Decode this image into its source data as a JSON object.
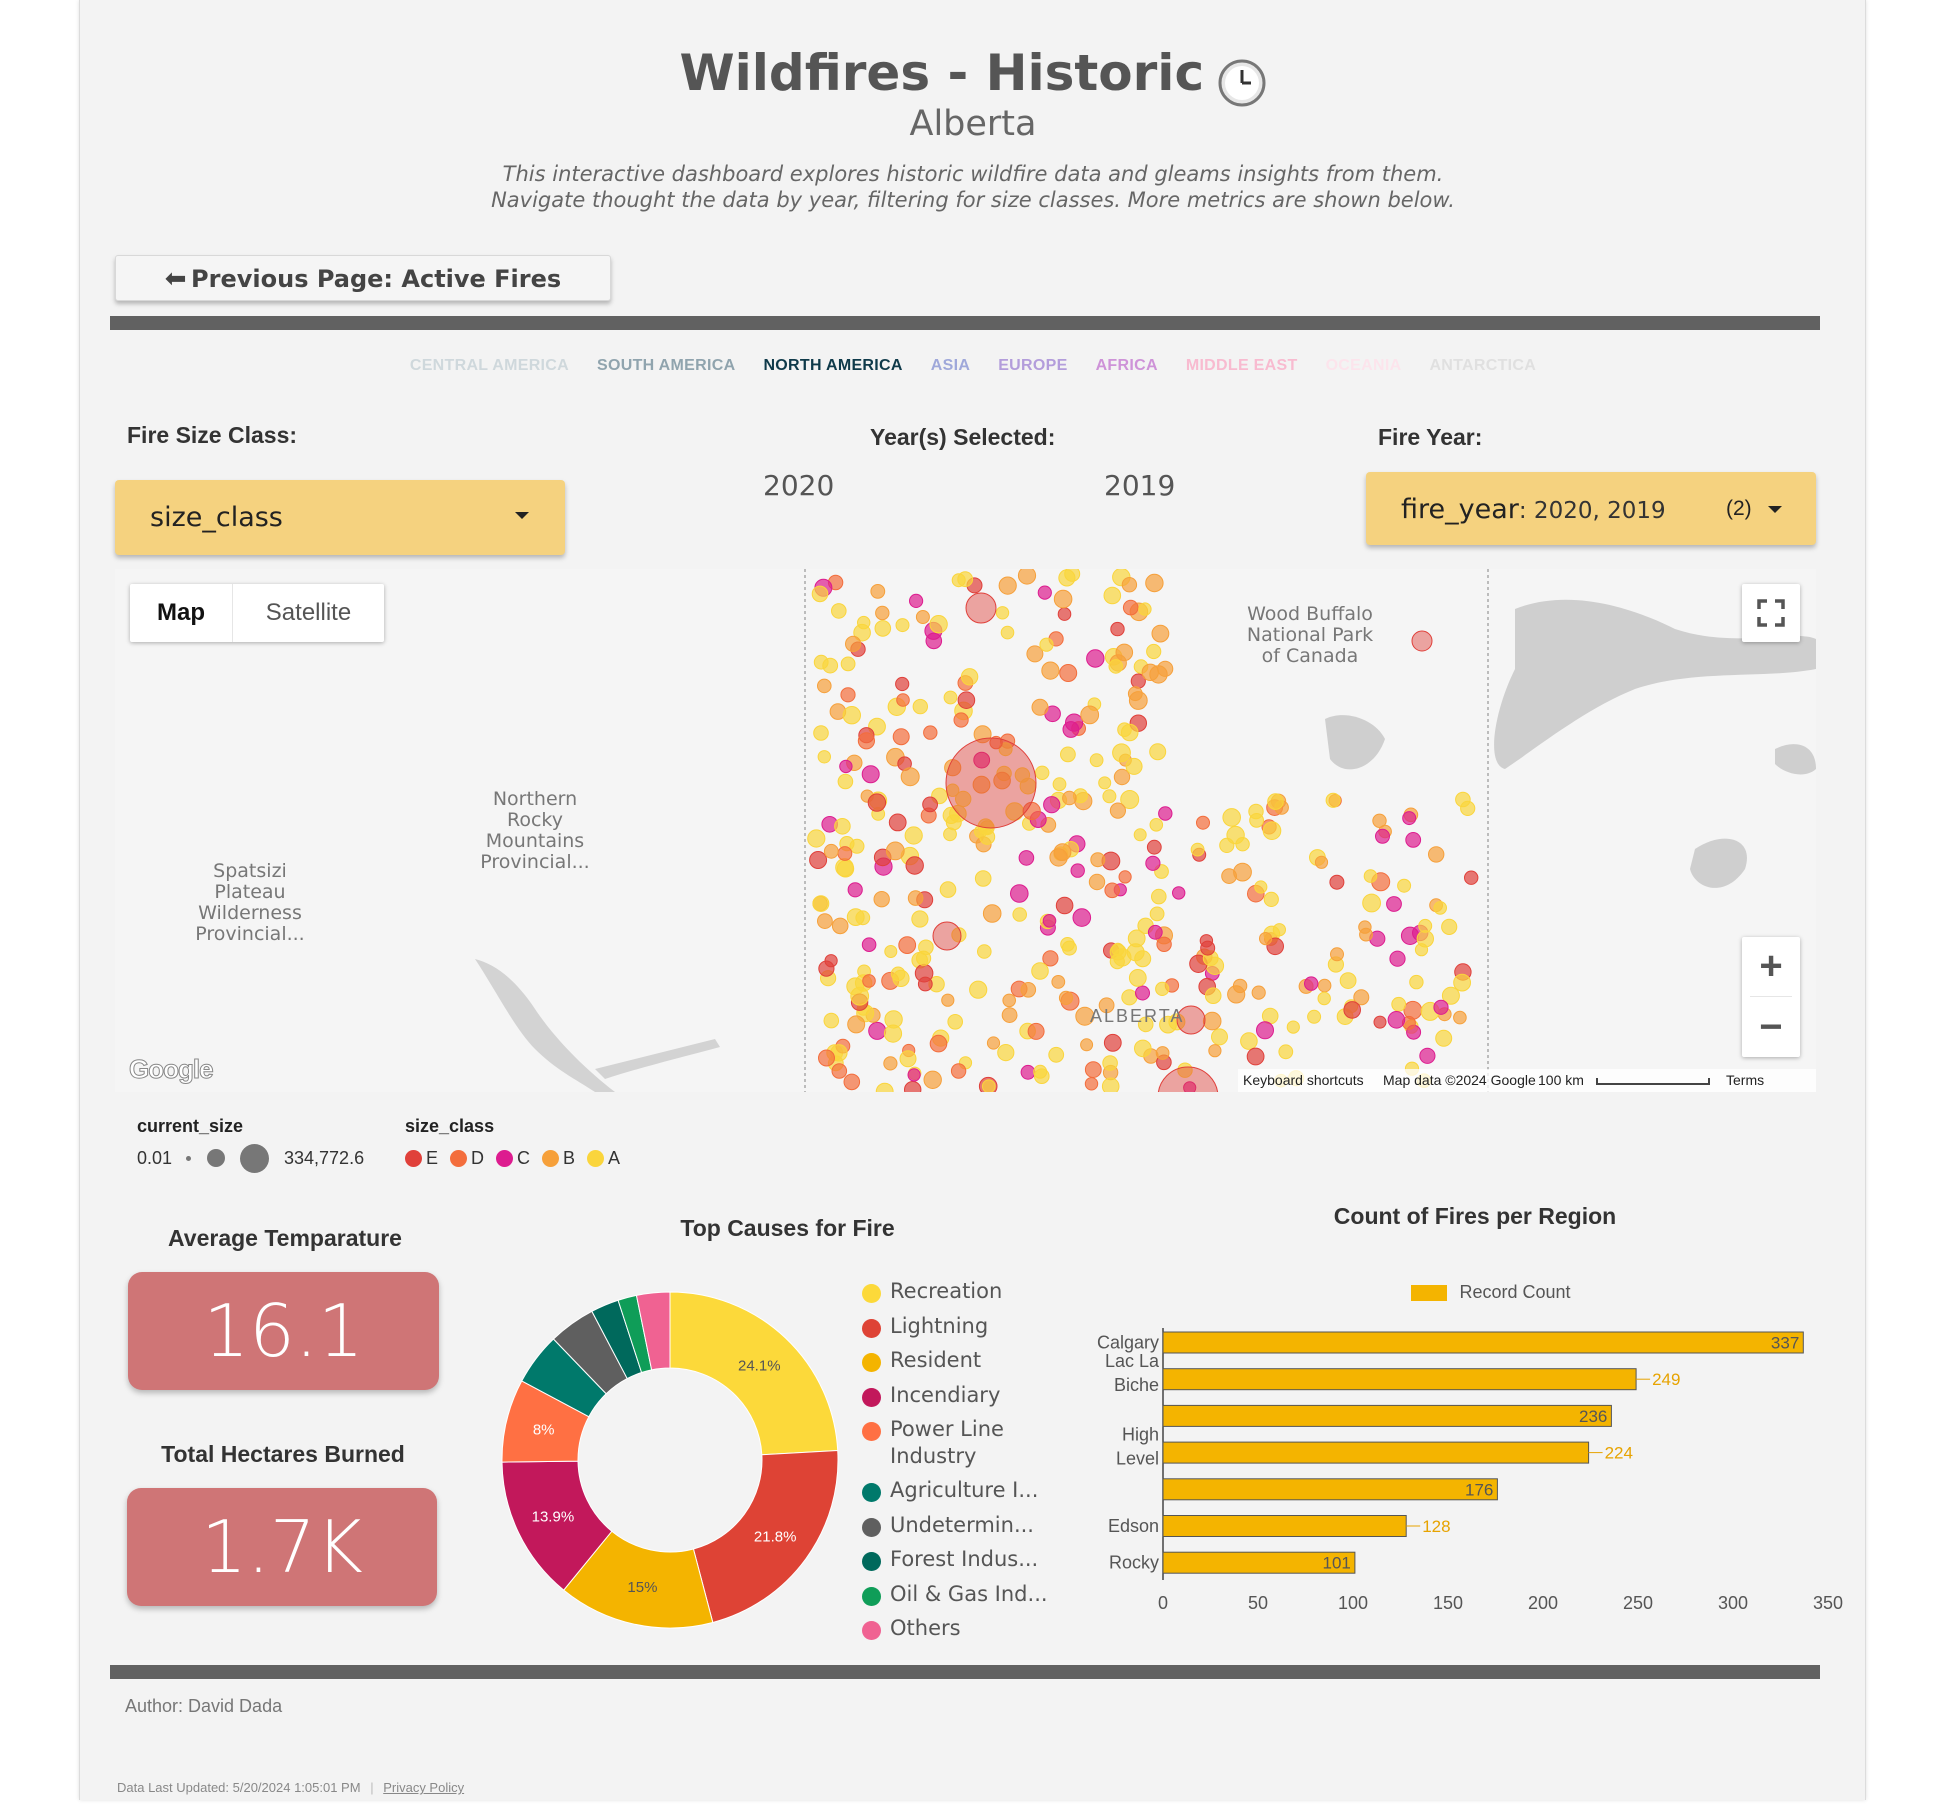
{
  "header": {
    "title": "Wildfires - Historic",
    "title_icon": "clock-icon",
    "subtitle": "Alberta",
    "description_line1": "This interactive dashboard explores historic wildfire data and gleams insights from them.",
    "description_line2": "Navigate thought the data by year, filtering for size classes. More metrics are shown below."
  },
  "nav": {
    "previous_page_label": "Previous Page: Active Fires"
  },
  "region_tabs": [
    {
      "label": "CENTRAL AMERICA",
      "color": "#cfd8dc"
    },
    {
      "label": "SOUTH AMERICA",
      "color": "#90a4ae"
    },
    {
      "label": "NORTH AMERICA",
      "color": "#0f3a4a"
    },
    {
      "label": "ASIA",
      "color": "#9fa8da"
    },
    {
      "label": "EUROPE",
      "color": "#b39ddb"
    },
    {
      "label": "AFRICA",
      "color": "#ce93d8"
    },
    {
      "label": "MIDDLE EAST",
      "color": "#f8bbd0"
    },
    {
      "label": "OCEANIA",
      "color": "#fce4ec"
    },
    {
      "label": "ANTARCTICA",
      "color": "#e0e0e0"
    }
  ],
  "filters": {
    "size_class_label": "Fire Size Class:",
    "size_class_value": "size_class",
    "years_selected_label": "Year(s) Selected:",
    "years_selected": [
      "2020",
      "2019"
    ],
    "fire_year_label": "Fire Year:",
    "fire_year_field": "fire_year",
    "fire_year_value": ": 2020, 2019",
    "fire_year_count": "(2)"
  },
  "map": {
    "map_button": "Map",
    "satellite_button": "Satellite",
    "labels": {
      "wood_buffalo_1": "Wood Buffalo",
      "wood_buffalo_2": "National Park",
      "wood_buffalo_3": "of Canada",
      "northern_rocky_1": "Northern",
      "northern_rocky_2": "Rocky",
      "northern_rocky_3": "Mountains",
      "northern_rocky_4": "Provincial...",
      "spatsizi_1": "Spatsizi",
      "spatsizi_2": "Plateau",
      "spatsizi_3": "Wilderness",
      "spatsizi_4": "Provincial...",
      "alberta": "ALBERTA"
    },
    "google_logo": "Google",
    "footer": {
      "shortcuts": "Keyboard shortcuts",
      "map_data": "Map data ©2024 Google",
      "scale": "100 km",
      "terms": "Terms"
    },
    "zoom_in": "+",
    "zoom_out": "−"
  },
  "map_legend": {
    "size_title": "current_size",
    "size_min": "0.01",
    "size_max": "334,772.6",
    "class_title": "size_class",
    "classes": [
      {
        "label": "E",
        "color": "#e0403a"
      },
      {
        "label": "D",
        "color": "#f36d3c"
      },
      {
        "label": "C",
        "color": "#dd1c8f"
      },
      {
        "label": "B",
        "color": "#f6a03a"
      },
      {
        "label": "A",
        "color": "#fad53c"
      }
    ]
  },
  "metrics": {
    "avg_temp_label": "Average Temparature",
    "avg_temp_value": "16.1",
    "hectares_label": "Total Hectares Burned",
    "hectares_value": "1.7K"
  },
  "chart_data": [
    {
      "type": "pie",
      "title": "Top Causes for Fire",
      "categories": [
        "Recreation",
        "Lightning",
        "Resident",
        "Incendiary",
        "Power Line Industry",
        "Agriculture I...",
        "Undetermin...",
        "Forest Indus...",
        "Oil & Gas Ind...",
        "Others"
      ],
      "legend_labels": [
        "Recreation",
        "Lightning",
        "Resident",
        "Incendiary",
        "Power Line\nIndustry",
        "Agriculture I...",
        "Undetermin...",
        "Forest Indus...",
        "Oil & Gas Ind...",
        "Others"
      ],
      "values": [
        24.1,
        21.8,
        15.0,
        13.9,
        8.0,
        5.0,
        4.5,
        2.7,
        1.8,
        3.2
      ],
      "value_labels": [
        "24.1%",
        "21.8%",
        "15%",
        "13.9%",
        "8%",
        "",
        "",
        "",
        "",
        ""
      ],
      "colors": [
        "#fcd93a",
        "#de4335",
        "#f4b400",
        "#c2185b",
        "#ff7043",
        "#00796b",
        "#5f5f5f",
        "#00695c",
        "#0f9d58",
        "#f06292"
      ],
      "legend_position": "right"
    },
    {
      "type": "bar",
      "orientation": "horizontal",
      "title": "Count of Fires per Region",
      "legend": "Record Count",
      "legend_position": "top",
      "categories": [
        "Calgary",
        "Lac La Biche",
        "",
        "High Level",
        "",
        "Edson",
        "Rocky"
      ],
      "values": [
        337,
        249,
        236,
        224,
        176,
        128,
        101
      ],
      "value_labels": [
        "337",
        "249",
        "236",
        "224",
        "176",
        "128",
        "101"
      ],
      "xlim": [
        0,
        350
      ],
      "x_ticks": [
        "0",
        "50",
        "100",
        "150",
        "200",
        "250",
        "300",
        "350"
      ],
      "bar_color": "#f4b400"
    }
  ],
  "footer": {
    "author": "Author: David Dada",
    "updated": "Data Last Updated: 5/20/2024 1:05:01 PM",
    "privacy": "Privacy Policy"
  }
}
